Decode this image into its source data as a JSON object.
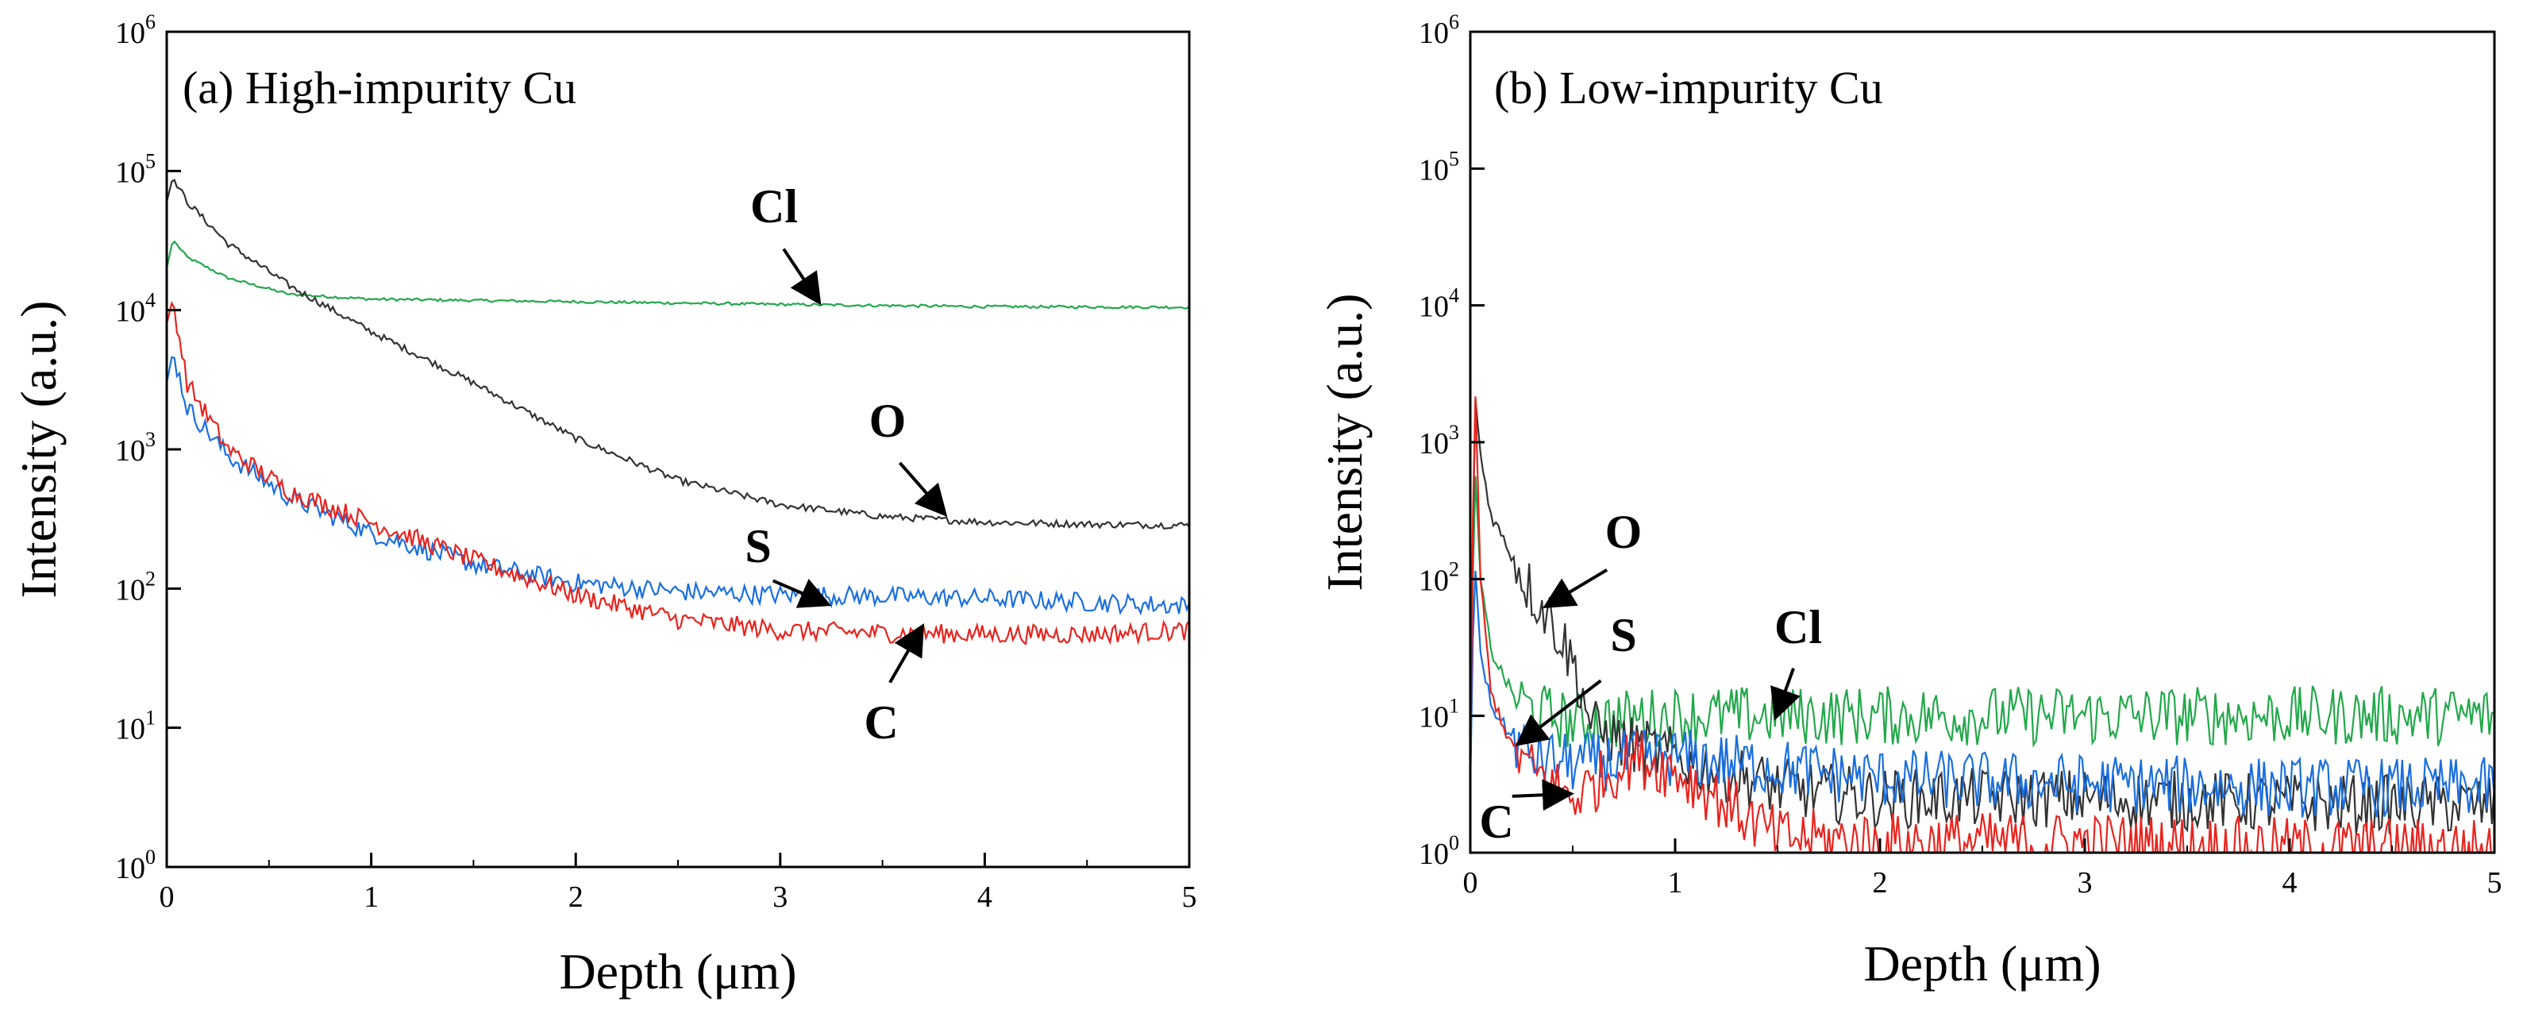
{
  "chart_data": [
    {
      "type": "line",
      "title": "(a) High-impurity  Cu",
      "xlabel": "Depth (μm)",
      "ylabel": "Intensity (a.u.)",
      "xlim": [
        0,
        5
      ],
      "ylim": [
        1,
        1000000
      ],
      "y_scale": "log",
      "x_ticks": [
        "0",
        "1",
        "2",
        "3",
        "4",
        "5"
      ],
      "y_ticks": [
        {
          "base": "10",
          "exp": "0"
        },
        {
          "base": "10",
          "exp": "1"
        },
        {
          "base": "10",
          "exp": "2"
        },
        {
          "base": "10",
          "exp": "3"
        },
        {
          "base": "10",
          "exp": "4"
        },
        {
          "base": "10",
          "exp": "5"
        },
        {
          "base": "10",
          "exp": "6"
        }
      ],
      "series": [
        {
          "name": "Cl",
          "color": "#22a84a",
          "x": [
            0,
            0.03,
            0.1,
            0.3,
            0.6,
            1.0,
            2.0,
            3.0,
            4.0,
            5.0
          ],
          "values": [
            20000,
            32000,
            24000,
            17000,
            13000,
            12000,
            11500,
            11000,
            10600,
            10500
          ]
        },
        {
          "name": "O",
          "color": "#333333",
          "x": [
            0,
            0.03,
            0.1,
            0.3,
            0.6,
            1.0,
            1.5,
            2.0,
            2.5,
            3.0,
            3.5,
            4.0,
            4.5,
            5.0
          ],
          "values": [
            60000,
            90000,
            60000,
            30000,
            15000,
            7000,
            3000,
            1200,
            600,
            400,
            330,
            300,
            290,
            285
          ]
        },
        {
          "name": "S",
          "color": "#1a6fe0",
          "x": [
            0,
            0.03,
            0.1,
            0.3,
            0.6,
            1.0,
            1.5,
            2.0,
            2.5,
            3.0,
            3.5,
            4.0,
            4.5,
            5.0
          ],
          "values": [
            3000,
            5000,
            2000,
            900,
            450,
            250,
            150,
            110,
            95,
            90,
            88,
            85,
            80,
            75
          ]
        },
        {
          "name": "C",
          "color": "#e8241e",
          "x": [
            0,
            0.03,
            0.1,
            0.3,
            0.6,
            1.0,
            1.5,
            2.0,
            2.5,
            3.0,
            3.5,
            4.0,
            4.5,
            5.0
          ],
          "values": [
            8000,
            12000,
            3000,
            1000,
            500,
            300,
            160,
            90,
            60,
            50,
            48,
            47,
            47,
            50
          ]
        }
      ],
      "annotations": [
        {
          "text": "Cl",
          "points_to": {
            "x": 3.2,
            "y": 13000
          }
        },
        {
          "text": "O",
          "points_to": {
            "x": 3.8,
            "y": 360
          }
        },
        {
          "text": "S",
          "points_to": {
            "x": 3.25,
            "y": 85
          }
        },
        {
          "text": "C",
          "points_to": {
            "x": 3.7,
            "y": 55
          }
        }
      ]
    },
    {
      "type": "line",
      "title": "(b) Low-impurity  Cu",
      "xlabel": "Depth (μm)",
      "ylabel": "Intensity (a.u.)",
      "xlim": [
        0,
        5
      ],
      "ylim": [
        1,
        1000000
      ],
      "y_scale": "log",
      "x_ticks": [
        "0",
        "1",
        "2",
        "3",
        "4",
        "5"
      ],
      "y_ticks": [
        {
          "base": "10",
          "exp": "0"
        },
        {
          "base": "10",
          "exp": "1"
        },
        {
          "base": "10",
          "exp": "2"
        },
        {
          "base": "10",
          "exp": "3"
        },
        {
          "base": "10",
          "exp": "4"
        },
        {
          "base": "10",
          "exp": "5"
        },
        {
          "base": "10",
          "exp": "6"
        }
      ],
      "series": [
        {
          "name": "Cl",
          "color": "#22a84a",
          "x": [
            0,
            0.02,
            0.05,
            0.1,
            0.2,
            0.3,
            0.5,
            1.0,
            2.0,
            3.0,
            4.0,
            5.0
          ],
          "values": [
            3,
            800,
            100,
            30,
            15,
            11,
            9,
            10,
            10,
            10,
            10,
            10
          ]
        },
        {
          "name": "O",
          "color": "#333333",
          "x": [
            0,
            0.02,
            0.05,
            0.1,
            0.2,
            0.3,
            0.4,
            0.5,
            0.6,
            0.8,
            1.0,
            1.5,
            2.0,
            3.0,
            4.0,
            5.0
          ],
          "values": [
            3,
            2500,
            800,
            300,
            150,
            80,
            50,
            25,
            8,
            6,
            5,
            3,
            2.5,
            2.5,
            2.3,
            2.2
          ]
        },
        {
          "name": "S",
          "color": "#1a6fe0",
          "x": [
            0,
            0.02,
            0.05,
            0.1,
            0.2,
            0.3,
            0.5,
            1.0,
            2.0,
            3.0,
            4.0,
            5.0
          ],
          "values": [
            3,
            150,
            30,
            12,
            7,
            5,
            4.5,
            5,
            3.5,
            3.2,
            3,
            3
          ]
        },
        {
          "name": "C",
          "color": "#e8241e",
          "x": [
            0,
            0.02,
            0.05,
            0.1,
            0.2,
            0.3,
            0.5,
            0.8,
            1.0,
            1.5,
            2.0,
            3.0,
            4.0,
            5.0
          ],
          "values": [
            3,
            4000,
            100,
            15,
            6,
            4,
            2.5,
            5,
            4,
            1.3,
            1.2,
            1.2,
            1.1,
            1.1
          ]
        }
      ],
      "annotations": [
        {
          "text": "O",
          "points_to": {
            "x": 0.38,
            "y": 65
          }
        },
        {
          "text": "S",
          "points_to": {
            "x": 0.25,
            "y": 8
          }
        },
        {
          "text": "Cl",
          "points_to": {
            "x": 1.5,
            "y": 10
          }
        },
        {
          "text": "C",
          "points_to": {
            "x": 0.5,
            "y": 4
          }
        }
      ]
    }
  ]
}
